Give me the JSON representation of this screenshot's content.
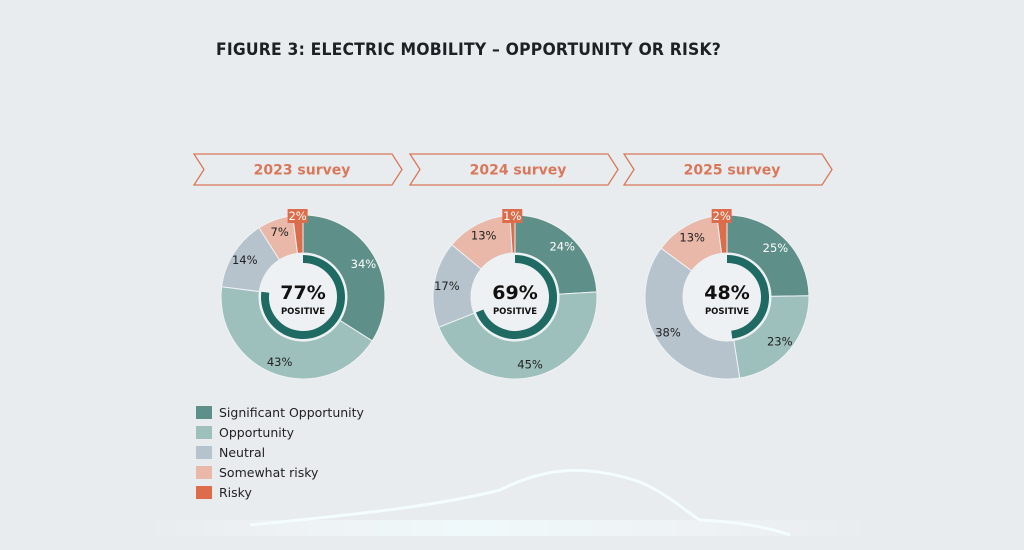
{
  "title": "FIGURE 3: ELECTRIC MOBILITY – OPPORTUNITY OR RISK?",
  "colors": {
    "background": "#e8ecef",
    "accent": "#d9775a",
    "inner_positive_arc": "#1f6a62",
    "center_fill": "#eef1f3"
  },
  "chart_data": [
    {
      "type": "pie",
      "variant": "donut",
      "title": "2023 survey",
      "center_value": "77%",
      "center_caption": "POSITIVE",
      "positive_share": 77,
      "categories": [
        "Significant Opportunity",
        "Opportunity",
        "Neutral",
        "Somewhat risky",
        "Risky"
      ],
      "values": [
        34,
        43,
        14,
        7,
        2
      ],
      "labels": [
        "34%",
        "43%",
        "14%",
        "7%",
        "2%"
      ]
    },
    {
      "type": "pie",
      "variant": "donut",
      "title": "2024 survey",
      "center_value": "69%",
      "center_caption": "POSITIVE",
      "positive_share": 69,
      "categories": [
        "Significant Opportunity",
        "Opportunity",
        "Neutral",
        "Somewhat risky",
        "Risky"
      ],
      "values": [
        24,
        45,
        17,
        13,
        1
      ],
      "labels": [
        "24%",
        "45%",
        "17%",
        "13%",
        "1%"
      ]
    },
    {
      "type": "pie",
      "variant": "donut",
      "title": "2025 survey",
      "center_value": "48%",
      "center_caption": "POSITIVE",
      "positive_share": 48,
      "categories": [
        "Significant Opportunity",
        "Opportunity",
        "Neutral",
        "Somewhat risky",
        "Risky"
      ],
      "values": [
        25,
        23,
        38,
        13,
        2
      ],
      "labels": [
        "25%",
        "23%",
        "38%",
        "13%",
        "2%"
      ]
    }
  ],
  "legend": {
    "placement": "bottom-left",
    "items": [
      {
        "label": "Significant Opportunity",
        "color": "#5e8f89",
        "label_color": "#ffffff"
      },
      {
        "label": "Opportunity",
        "color": "#9dc0bd",
        "label_color": "#222222"
      },
      {
        "label": "Neutral",
        "color": "#b7c3cc",
        "label_color": "#222222"
      },
      {
        "label": "Somewhat risky",
        "color": "#e9b8a8",
        "label_color": "#222222"
      },
      {
        "label": "Risky",
        "color": "#dc6c4a",
        "label_color": "#ffffff"
      }
    ]
  }
}
